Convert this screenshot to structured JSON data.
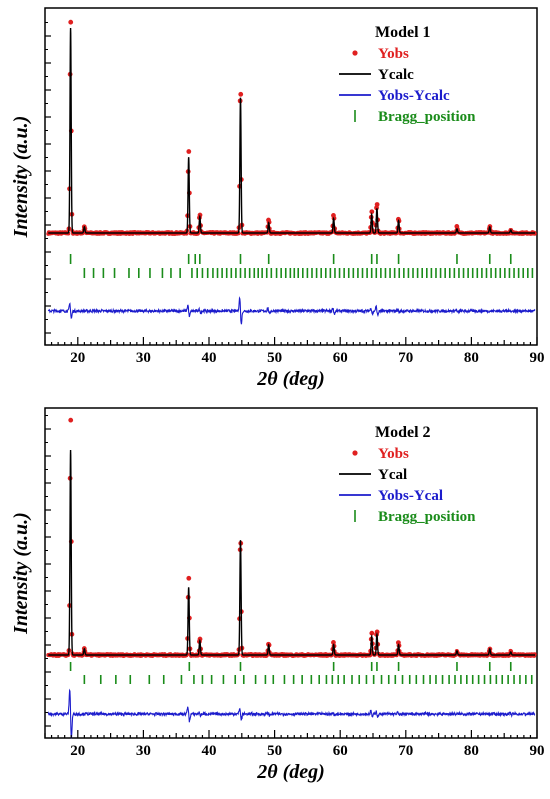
{
  "chart_data": [
    {
      "type": "line",
      "title": "Model 1",
      "xlabel": "2θ (deg)",
      "ylabel": "Intensity (a.u.)",
      "xlim": [
        15,
        90
      ],
      "x_ticks": [
        20,
        30,
        40,
        50,
        60,
        70,
        80,
        90
      ],
      "y_tick_labels": false,
      "legend": {
        "placement": "top-right",
        "entries": [
          {
            "name": "Yobs",
            "color": "#e02020",
            "marker": "dot"
          },
          {
            "name": "Ycalc",
            "color": "#000000",
            "marker": "line"
          },
          {
            "name": "Yobs-Ycalc",
            "color": "#1c1ccc",
            "marker": "line"
          },
          {
            "name": "Bragg_position",
            "color": "#1a8c1a",
            "marker": "tick"
          }
        ]
      },
      "peaks": [
        {
          "x": 18.9,
          "ycalc": 100,
          "yobs": 105
        },
        {
          "x": 21.0,
          "ycalc": 3,
          "yobs": 3
        },
        {
          "x": 36.9,
          "ycalc": 37,
          "yobs": 41
        },
        {
          "x": 38.6,
          "ycalc": 8,
          "yobs": 9
        },
        {
          "x": 44.8,
          "ycalc": 66,
          "yobs": 75
        },
        {
          "x": 49.1,
          "ycalc": 5,
          "yobs": 7
        },
        {
          "x": 59.0,
          "ycalc": 7,
          "yobs": 9
        },
        {
          "x": 64.8,
          "ycalc": 9,
          "yobs": 11
        },
        {
          "x": 65.6,
          "ycalc": 12,
          "yobs": 15
        },
        {
          "x": 68.9,
          "ycalc": 6,
          "yobs": 7
        },
        {
          "x": 77.8,
          "ycalc": 2,
          "yobs": 3
        },
        {
          "x": 82.8,
          "ycalc": 3,
          "yobs": 3
        },
        {
          "x": 86.0,
          "ycalc": 1.5,
          "yobs": 2
        }
      ],
      "bragg_rows": [
        [
          18.9,
          36.9,
          37.9,
          38.6,
          44.8,
          49.1,
          59.0,
          64.8,
          65.6,
          68.9,
          77.8,
          82.8,
          86.0
        ],
        [
          21.0,
          22.4,
          23.9,
          25.6,
          27.8,
          29.3,
          31.0,
          32.9,
          34.2,
          35.6,
          37.4,
          38.2,
          39.0,
          39.8,
          40.6,
          41.3,
          42.0,
          42.7,
          43.4,
          44.1,
          44.8,
          45.5,
          46.2,
          46.9,
          47.5,
          48.1,
          48.8,
          49.5,
          50.3,
          51.0,
          51.7,
          52.4,
          53.0,
          53.6,
          54.3,
          55.0,
          55.7,
          56.4,
          57.1,
          57.8,
          58.5,
          59.2,
          59.9,
          60.6,
          61.3,
          62.0,
          62.7,
          63.4,
          64.1,
          64.8,
          65.5,
          66.2,
          66.9,
          67.6,
          68.3,
          69.0,
          69.7,
          70.4,
          71.1,
          71.8,
          72.5,
          73.2,
          73.9,
          74.6,
          75.3,
          76.0,
          76.7,
          77.4,
          78.1,
          78.8,
          79.5,
          80.2,
          80.9,
          81.6,
          82.3,
          83.0,
          83.7,
          84.4,
          85.1,
          85.8,
          86.5,
          87.2,
          87.9,
          88.6,
          89.3
        ]
      ]
    },
    {
      "type": "line",
      "title": "Model 2",
      "xlabel": "2θ (deg)",
      "ylabel": "Intensity (a.u.)",
      "xlim": [
        15,
        90
      ],
      "x_ticks": [
        20,
        30,
        40,
        50,
        60,
        70,
        80,
        90
      ],
      "y_tick_labels": false,
      "legend": {
        "placement": "top-right",
        "entries": [
          {
            "name": "Yobs",
            "color": "#e02020",
            "marker": "dot"
          },
          {
            "name": "Ycal",
            "color": "#000000",
            "marker": "line"
          },
          {
            "name": "Yobs-Ycal",
            "color": "#1c1ccc",
            "marker": "line"
          },
          {
            "name": "Bragg_position",
            "color": "#1a8c1a",
            "marker": "tick"
          }
        ]
      },
      "peaks": [
        {
          "x": 18.9,
          "ycalc": 100,
          "yobs": 117
        },
        {
          "x": 21.0,
          "ycalc": 3,
          "yobs": 3
        },
        {
          "x": 36.9,
          "ycalc": 33,
          "yobs": 38
        },
        {
          "x": 38.6,
          "ycalc": 7,
          "yobs": 8
        },
        {
          "x": 44.8,
          "ycalc": 56,
          "yobs": 60
        },
        {
          "x": 49.1,
          "ycalc": 5,
          "yobs": 6
        },
        {
          "x": 59.0,
          "ycalc": 5,
          "yobs": 6
        },
        {
          "x": 64.8,
          "ycalc": 9,
          "yobs": 11
        },
        {
          "x": 65.6,
          "ycalc": 10,
          "yobs": 12
        },
        {
          "x": 68.9,
          "ycalc": 5,
          "yobs": 6
        },
        {
          "x": 77.8,
          "ycalc": 2,
          "yobs": 2
        },
        {
          "x": 82.8,
          "ycalc": 3,
          "yobs": 3
        },
        {
          "x": 86.0,
          "ycalc": 1.5,
          "yobs": 2
        }
      ],
      "bragg_rows": [
        [
          18.9,
          37.0,
          44.8,
          59.0,
          64.8,
          65.6,
          68.9,
          77.8,
          82.8,
          86.0
        ],
        [
          21.0,
          23.5,
          25.8,
          28.0,
          30.9,
          33.1,
          35.8,
          37.7,
          39.0,
          40.4,
          42.2,
          44.0,
          45.3,
          47.1,
          48.6,
          49.8,
          51.5,
          52.9,
          54.2,
          55.6,
          56.8,
          57.9,
          58.8,
          59.7,
          60.6,
          61.8,
          62.9,
          64.0,
          65.1,
          66.3,
          67.4,
          68.4,
          69.5,
          70.6,
          71.6,
          72.7,
          73.7,
          74.6,
          75.6,
          76.6,
          77.5,
          78.4,
          79.3,
          80.2,
          81.1,
          82.0,
          82.9,
          83.8,
          84.7,
          85.6,
          86.5,
          87.4,
          88.3,
          89.2
        ]
      ]
    }
  ]
}
